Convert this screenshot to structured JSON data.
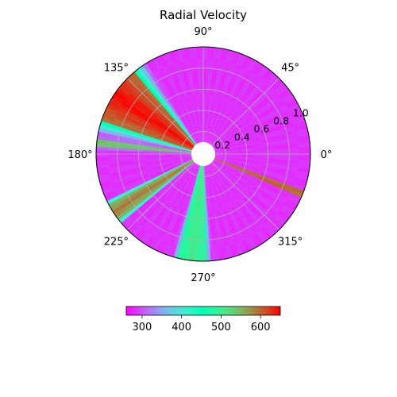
{
  "chart_data": {
    "type": "heatmap",
    "projection": "polar",
    "title": "Radial Velocity",
    "angle_ticks": [
      "0°",
      "45°",
      "90°",
      "135°",
      "180°",
      "225°",
      "270°",
      "315°"
    ],
    "radial_ticks": [
      "0.2",
      "0.4",
      "0.6",
      "0.8",
      "1.0"
    ],
    "rlim": [
      0.1,
      1.0
    ],
    "colormap": "rainbow",
    "colorbar": {
      "orientation": "horizontal",
      "vmin": 260,
      "vmax": 650,
      "ticks": [
        "300",
        "400",
        "500",
        "600"
      ]
    },
    "background_value": 285,
    "streams": [
      {
        "center_deg": 146,
        "width_deg": 30,
        "value": 648
      },
      {
        "center_deg": 174,
        "width_deg": 4,
        "value": 560
      },
      {
        "center_deg": 213,
        "width_deg": 10,
        "value": 590
      },
      {
        "center_deg": 264,
        "width_deg": 14,
        "value": 510
      },
      {
        "center_deg": 338,
        "width_deg": 3,
        "value": 630
      }
    ],
    "grid": true
  },
  "colors": {
    "background": "#ffffff",
    "grid": "#b0b0b0",
    "frame": "#000000"
  }
}
